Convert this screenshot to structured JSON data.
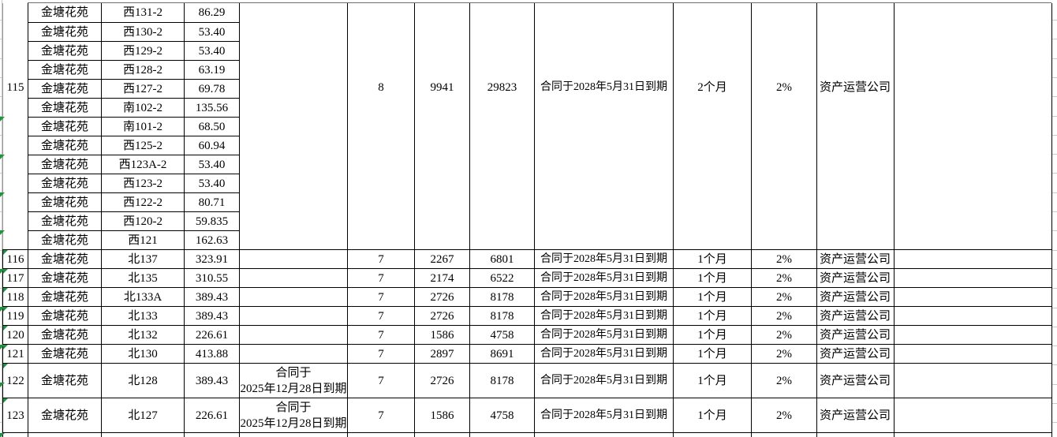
{
  "table": {
    "blank": "",
    "block115": {
      "row_no": "115",
      "estate": "金塘花苑",
      "units": [
        {
          "unit": "西131-2",
          "area": "86.29"
        },
        {
          "unit": "西130-2",
          "area": "53.40"
        },
        {
          "unit": "西129-2",
          "area": "53.40"
        },
        {
          "unit": "西128-2",
          "area": "63.19"
        },
        {
          "unit": "西127-2",
          "area": "69.78"
        },
        {
          "unit": "南102-2",
          "area": "135.56"
        },
        {
          "unit": "南101-2",
          "area": "68.50"
        },
        {
          "unit": "西125-2",
          "area": "60.94"
        },
        {
          "unit": "西123A-2",
          "area": "53.40"
        },
        {
          "unit": "西123-2",
          "area": "53.40"
        },
        {
          "unit": "西122-2",
          "area": "80.71"
        },
        {
          "unit": "西120-2",
          "area": "59.835"
        },
        {
          "unit": "西121",
          "area": "162.63"
        }
      ],
      "expiry_note": "",
      "count": "8",
      "monthly": "9941",
      "quarterly": "29823",
      "contract": "合同于2028年5月31日到期",
      "period": "2个月",
      "rate": "2%",
      "company": "资产运营公司"
    },
    "rows": [
      {
        "row_no": "116",
        "estate": "金塘花苑",
        "unit": "北137",
        "area": "323.91",
        "expiry_note": "",
        "count": "7",
        "monthly": "2267",
        "quarterly": "6801",
        "contract": "合同于2028年5月31日到期",
        "period": "1个月",
        "rate": "2%",
        "company": "资产运营公司"
      },
      {
        "row_no": "117",
        "estate": "金塘花苑",
        "unit": "北135",
        "area": "310.55",
        "expiry_note": "",
        "count": "7",
        "monthly": "2174",
        "quarterly": "6522",
        "contract": "合同于2028年5月31日到期",
        "period": "1个月",
        "rate": "2%",
        "company": "资产运营公司"
      },
      {
        "row_no": "118",
        "estate": "金塘花苑",
        "unit": "北133A",
        "area": "389.43",
        "expiry_note": "",
        "count": "7",
        "monthly": "2726",
        "quarterly": "8178",
        "contract": "合同于2028年5月31日到期",
        "period": "1个月",
        "rate": "2%",
        "company": "资产运营公司"
      },
      {
        "row_no": "119",
        "estate": "金塘花苑",
        "unit": "北133",
        "area": "389.43",
        "expiry_note": "",
        "count": "7",
        "monthly": "2726",
        "quarterly": "8178",
        "contract": "合同于2028年5月31日到期",
        "period": "1个月",
        "rate": "2%",
        "company": "资产运营公司"
      },
      {
        "row_no": "120",
        "estate": "金塘花苑",
        "unit": "北132",
        "area": "226.61",
        "expiry_note": "",
        "count": "7",
        "monthly": "1586",
        "quarterly": "4758",
        "contract": "合同于2028年5月31日到期",
        "period": "1个月",
        "rate": "2%",
        "company": "资产运营公司"
      },
      {
        "row_no": "121",
        "estate": "金塘花苑",
        "unit": "北130",
        "area": "413.88",
        "expiry_note": "",
        "count": "7",
        "monthly": "2897",
        "quarterly": "8691",
        "contract": "合同于2028年5月31日到期",
        "period": "1个月",
        "rate": "2%",
        "company": "资产运营公司"
      },
      {
        "row_no": "122",
        "estate": "金塘花苑",
        "unit": "北128",
        "area": "389.43",
        "expiry_note": "合同于\n2025年12月28日到期",
        "count": "7",
        "monthly": "2726",
        "quarterly": "8178",
        "contract": "合同于2028年5月31日到期",
        "period": "1个月",
        "rate": "2%",
        "company": "资产运营公司"
      },
      {
        "row_no": "123",
        "estate": "金塘花苑",
        "unit": "北127",
        "area": "226.61",
        "expiry_note": "合同于\n2025年12月28日到期",
        "count": "7",
        "monthly": "1586",
        "quarterly": "4758",
        "contract": "合同于2028年5月31日到期",
        "period": "1个月",
        "rate": "2%",
        "company": "资产运营公司"
      }
    ]
  },
  "colors": {
    "border": "#000000",
    "gridline": "#c9c9c9",
    "top_edge": "#6e6e6e",
    "error_triangle_green": "#1e9440"
  }
}
